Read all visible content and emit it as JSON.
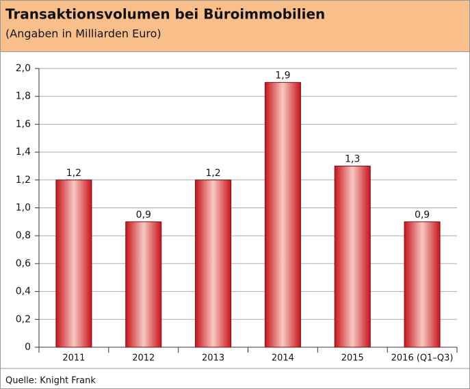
{
  "chart_data": {
    "type": "bar",
    "title": "Transaktionsvolumen bei Büroimmobilien",
    "subtitle": "(Angaben in Milliarden Euro)",
    "source": "Quelle: Knight Frank",
    "categories": [
      "2011",
      "2012",
      "2013",
      "2014",
      "2015",
      "2016 (Q1–Q3)"
    ],
    "values": [
      1.2,
      0.9,
      1.2,
      1.9,
      1.3,
      0.9
    ],
    "value_labels": [
      "1,2",
      "0,9",
      "1,2",
      "1,9",
      "1,3",
      "0,9"
    ],
    "color": "#e0282e",
    "ylim": [
      0,
      2
    ],
    "yticks": [
      0,
      {
        "value": 0.2,
        "label": "0,2"
      },
      {
        "value": 0.4,
        "label": "0,4"
      },
      {
        "value": 0.6,
        "label": "0,6"
      },
      {
        "value": 0.8,
        "label": "0,8"
      },
      {
        "value": 1,
        "label": "1,0"
      },
      {
        "value": 1.2,
        "label": "1,2"
      },
      {
        "value": 1.4,
        "label": "1,4"
      },
      {
        "value": 1.6,
        "label": "1,6"
      },
      {
        "value": 1.8,
        "label": "1,8"
      },
      {
        "value": 2,
        "label": "2,0"
      }
    ],
    "grid": true
  }
}
